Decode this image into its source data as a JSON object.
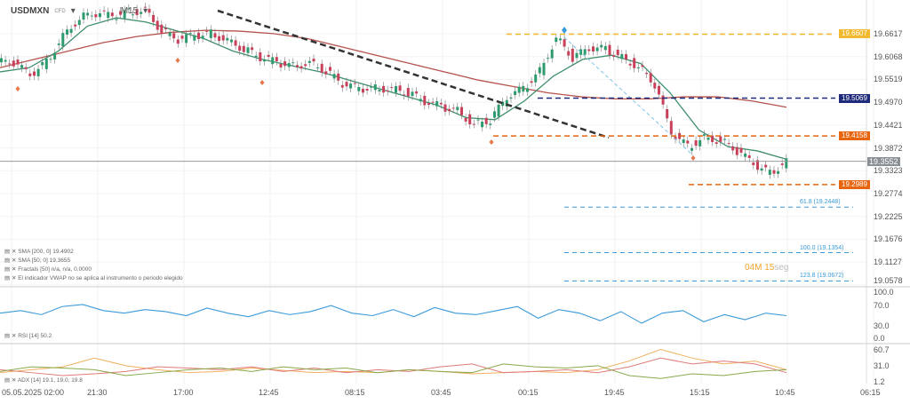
{
  "header": {
    "symbol": "USDMXN",
    "type": "CFD",
    "timeframe": "M15"
  },
  "legend": {
    "sma200": "SMA [200, 0] 19.4902",
    "sma50": "SMA [50, 0] 19.3655",
    "fractals": "Fractals [50] n/a, n/a, 0.0000",
    "vwap": "El indicador VWAP no se aplica al instrumento o periodo elegido",
    "rsi": "RSI [14] 50.2",
    "adx": "ADX [14] 19.1, 19.0, 19.8"
  },
  "countdown": {
    "value": "04M 15",
    "unit": "seg"
  },
  "levels": [
    {
      "label": "19.6607",
      "value": 19.6607,
      "color": "#f2b82e"
    },
    {
      "label": "19.5069",
      "value": 19.5069,
      "color": "#1f2a7a"
    },
    {
      "label": "19.4158",
      "value": 19.4158,
      "color": "#e8650f"
    },
    {
      "label": "19.2989",
      "value": 19.2989,
      "color": "#e8650f"
    }
  ],
  "current_price": {
    "label": "19.3552",
    "value": 19.3552
  },
  "fib": [
    {
      "label": "61.8 (19.2448)",
      "value": 19.2448
    },
    {
      "label": "100.0 (19.1354)",
      "value": 19.1354
    },
    {
      "label": "123.8 (19.0672)",
      "value": 19.0672
    }
  ],
  "chart_data": {
    "type": "candlestick",
    "price_axis": [
      "19.6617",
      "19.6068",
      "19.5519",
      "19.4970",
      "19.4421",
      "19.3872",
      "19.3323",
      "19.2774",
      "19.2225",
      "19.1676",
      "19.1127",
      "19.0578"
    ],
    "ylim": [
      19.05,
      19.74
    ],
    "time_axis": [
      "05.05.2025  02:00",
      "21:30",
      "17:00",
      "12:45",
      "08:15",
      "03:45",
      "00:15",
      "19:45",
      "15:15",
      "10:45",
      "06:15"
    ],
    "close": [
      19.593,
      19.561,
      19.593,
      19.657,
      19.7,
      19.711,
      19.704,
      19.713,
      19.72,
      19.668,
      19.647,
      19.657,
      19.662,
      19.647,
      19.625,
      19.604,
      19.593,
      19.583,
      19.593,
      19.572,
      19.54,
      19.53,
      19.53,
      19.53,
      19.52,
      19.497,
      19.487,
      19.476,
      19.444,
      19.455,
      19.508,
      19.53,
      19.572,
      19.653,
      19.604,
      19.625,
      19.625,
      19.604,
      19.583,
      19.54,
      19.423,
      19.39,
      19.412,
      19.405,
      19.38,
      19.348,
      19.326,
      19.355
    ],
    "sma200": [
      19.58,
      19.6,
      19.62,
      19.64,
      19.655,
      19.665,
      19.67,
      19.668,
      19.662,
      19.65,
      19.63,
      19.61,
      19.59,
      19.57,
      19.55,
      19.535,
      19.52,
      19.51,
      19.505,
      19.505,
      19.51,
      19.51,
      19.5,
      19.485
    ],
    "sma50": [
      19.57,
      19.58,
      19.62,
      19.68,
      19.7,
      19.69,
      19.67,
      19.65,
      19.62,
      19.6,
      19.585,
      19.57,
      19.55,
      19.53,
      19.51,
      19.49,
      19.46,
      19.455,
      19.5,
      19.56,
      19.6,
      19.61,
      19.59,
      19.52,
      19.43,
      19.39,
      19.38,
      19.36
    ],
    "rsi_axis": [
      "100.0",
      "70.0",
      "30.0",
      "0.0"
    ],
    "rsi": [
      55,
      60,
      52,
      68,
      72,
      60,
      55,
      62,
      58,
      50,
      65,
      55,
      48,
      60,
      52,
      58,
      70,
      55,
      50,
      62,
      48,
      66,
      55,
      52,
      60,
      68,
      45,
      62,
      55,
      40,
      58,
      35,
      55,
      60,
      38,
      52,
      42,
      55,
      50
    ],
    "adx_axis": [
      "60.7",
      "31.0",
      "1.2"
    ],
    "adx": {
      "adx": [
        20,
        25,
        30,
        45,
        32,
        25,
        20,
        22,
        28,
        24,
        20,
        22,
        20,
        25,
        22,
        18,
        20,
        22,
        20,
        25,
        40,
        60,
        45,
        35,
        40,
        25
      ],
      "plus_di": [
        25,
        20,
        15,
        18,
        22,
        30,
        28,
        25,
        30,
        22,
        28,
        20,
        25,
        22,
        30,
        35,
        20,
        22,
        25,
        20,
        30,
        45,
        35,
        40,
        35,
        20
      ],
      "minus_di": [
        22,
        30,
        28,
        25,
        15,
        20,
        25,
        28,
        22,
        30,
        25,
        28,
        20,
        25,
        22,
        20,
        35,
        30,
        28,
        32,
        15,
        10,
        18,
        15,
        22,
        25
      ]
    }
  }
}
